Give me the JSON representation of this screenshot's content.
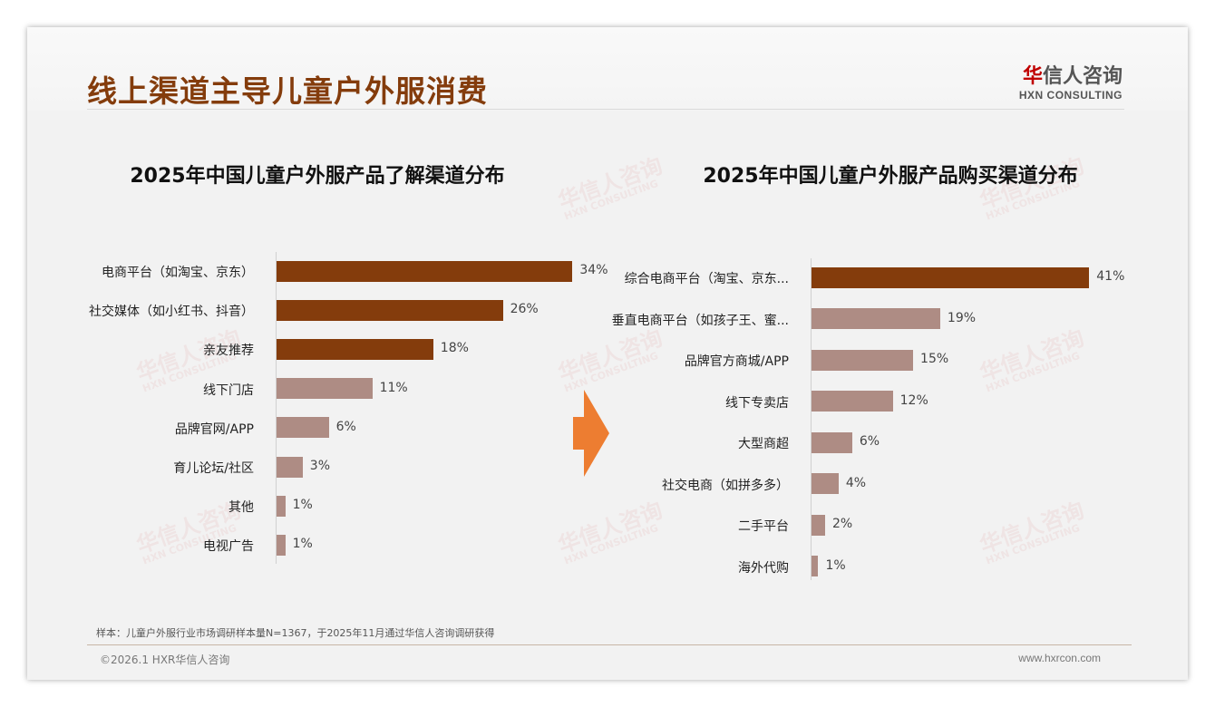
{
  "header": {
    "title": "线上渠道主导儿童户外服消费",
    "logo_cn": "华信人咨询",
    "logo_en": "HXN CONSULTING"
  },
  "colors": {
    "dark": "#843c0c",
    "light": "#ae8c84",
    "arrow": "#ed7d31"
  },
  "chart_data": [
    {
      "type": "bar",
      "orientation": "horizontal",
      "title": "2025年中国儿童户外服产品了解渠道分布",
      "categories": [
        "电商平台（如淘宝、京东）",
        "社交媒体（如小红书、抖音）",
        "亲友推荐",
        "线下门店",
        "品牌官网/APP",
        "育儿论坛/社区",
        "其他",
        "电视广告"
      ],
      "values": [
        34,
        26,
        18,
        11,
        6,
        3,
        1,
        1
      ],
      "labels": [
        "34%",
        "26%",
        "18%",
        "11%",
        "6%",
        "3%",
        "1%",
        "1%"
      ],
      "highlight_count": 3,
      "unit": "%"
    },
    {
      "type": "bar",
      "orientation": "horizontal",
      "title": "2025年中国儿童户外服产品购买渠道分布",
      "categories": [
        "综合电商平台（淘宝、京东...",
        "垂直电商平台（如孩子王、蜜...",
        "品牌官方商城/APP",
        "线下专卖店",
        "大型商超",
        "社交电商（如拼多多）",
        "二手平台",
        "海外代购"
      ],
      "values": [
        41,
        19,
        15,
        12,
        6,
        4,
        2,
        1
      ],
      "labels": [
        "41%",
        "19%",
        "15%",
        "12%",
        "6%",
        "4%",
        "2%",
        "1%"
      ],
      "highlight_count": 1,
      "unit": "%"
    }
  ],
  "footer": {
    "note": "样本：儿童户外服行业市场调研样本量N=1367，于2025年11月通过华信人咨询调研获得",
    "copyright": "©2026.1 HXR华信人咨询",
    "website": "www.hxrcon.com"
  }
}
